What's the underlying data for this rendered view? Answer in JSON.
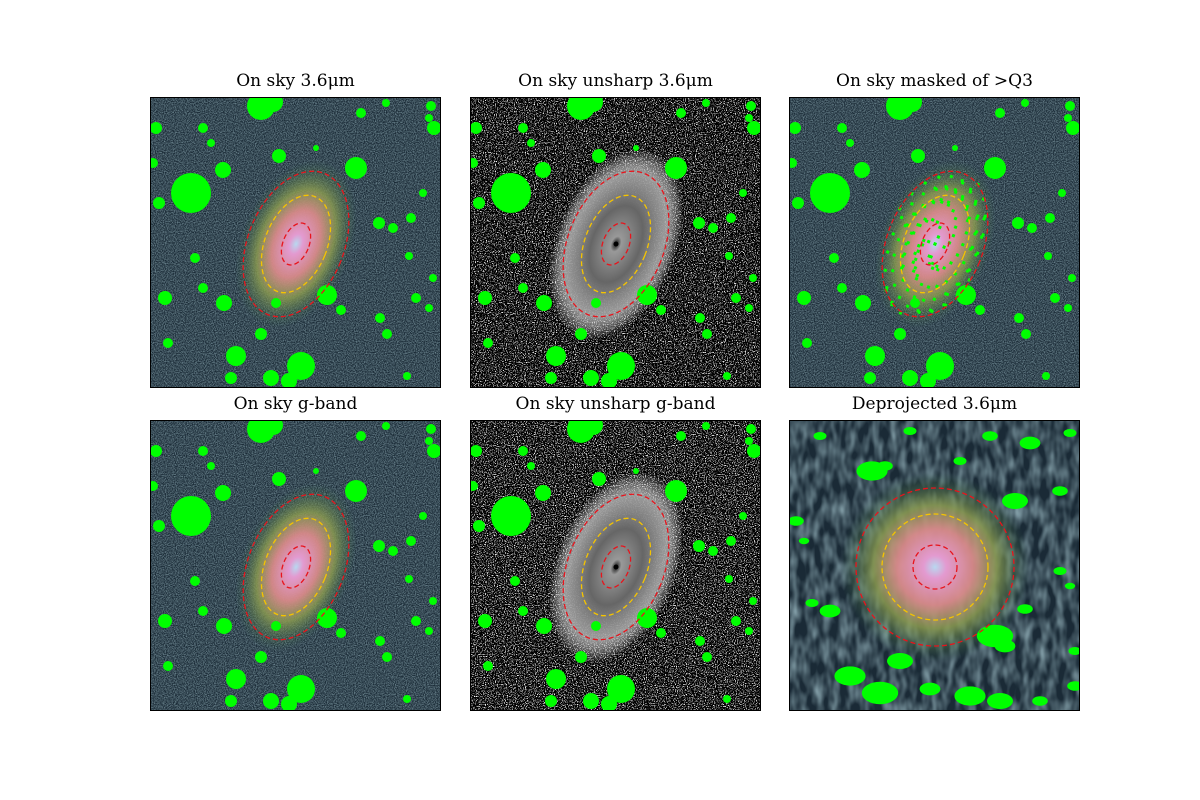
{
  "figure": {
    "panels": [
      {
        "title": "On sky 3.6μm",
        "style": "color"
      },
      {
        "title": "On sky unsharp 3.6μm",
        "style": "unsharp"
      },
      {
        "title": "On sky masked of >Q3",
        "style": "masked"
      },
      {
        "title": "On sky g-band",
        "style": "color"
      },
      {
        "title": "On sky unsharp g-band",
        "style": "unsharp"
      },
      {
        "title": "Deprojected 3.6μm",
        "style": "deprojected"
      }
    ],
    "colors": {
      "mask": "#00ff00",
      "outer_ellipse": "#e8141c",
      "middle_ellipse": "#f5c400",
      "inner_ellipse": "#e8141c",
      "sky_background": "#1a2a36"
    }
  }
}
